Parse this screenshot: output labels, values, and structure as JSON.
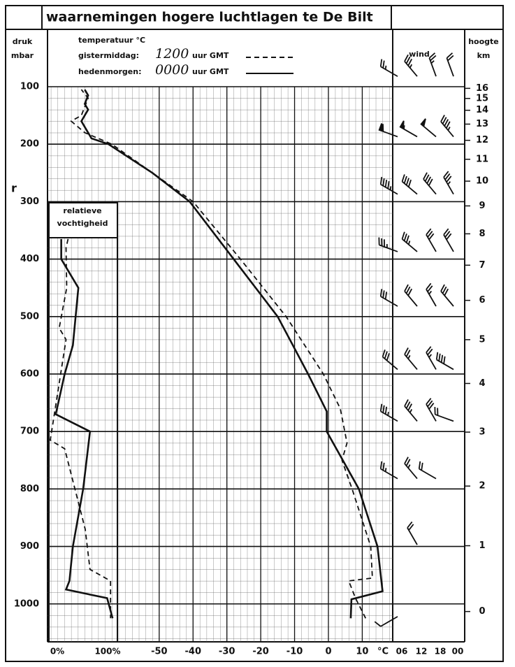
{
  "chart_data": {
    "type": "sounding",
    "title": "waarnemingen hogere luchtlagen te De Bilt",
    "annotation": "r",
    "ylabel": "druk",
    "yunit": "mbar",
    "xlabel": "temperatuur °C",
    "xunit": "°C",
    "wind_label": "wind",
    "height_label": "hoogte",
    "height_unit": "km",
    "ylim": [
      100,
      1066
    ],
    "yticks": [
      100,
      200,
      300,
      400,
      500,
      600,
      700,
      800,
      900,
      1000
    ],
    "xlim": [
      -83,
      19
    ],
    "xticks": [
      -50,
      -40,
      -30,
      -20,
      -10,
      0,
      10
    ],
    "height_ticks": [
      0,
      1,
      2,
      3,
      4,
      5,
      6,
      7,
      8,
      9,
      10,
      11,
      12,
      13,
      14,
      15,
      16
    ],
    "grid": true,
    "humidity": {
      "label": [
        "relatieve",
        "vochtigheid"
      ],
      "xlim": [
        0,
        100
      ],
      "xticks": [
        {
          "value": 0,
          "label": "0%"
        },
        {
          "value": 100,
          "label": "100%"
        }
      ]
    },
    "series": [
      {
        "name": "gistermiddag:",
        "time": "1200",
        "time_unit": "uur GMT",
        "color": "#111",
        "dash": true,
        "pressure": [
          1025,
          990,
          960,
          955,
          900,
          800,
          750,
          720,
          660,
          600,
          500,
          400,
          300,
          250,
          200,
          180,
          160,
          150,
          120,
          105
        ],
        "temperature": [
          11,
          8,
          6,
          13,
          12.5,
          7,
          4,
          5.5,
          3.5,
          -1.5,
          -12.5,
          -26,
          -40,
          -52,
          -64,
          -72,
          -76,
          -73,
          -71,
          -73
        ],
        "humidity_pressure": [
          365,
          380,
          450,
          520,
          540,
          715,
          730,
          870,
          940,
          960,
          1025
        ],
        "humidity": [
          28,
          25,
          26,
          15,
          25,
          2,
          23,
          53,
          60,
          90,
          90
        ]
      },
      {
        "name": "hedenmorgen:",
        "time": "0000",
        "time_unit": "uur GMT",
        "color": "#111",
        "dash": false,
        "pressure": [
          1025,
          992,
          978,
          900,
          800,
          700,
          665,
          600,
          500,
          400,
          300,
          250,
          200,
          190,
          170,
          160,
          150,
          140,
          130,
          115,
          105
        ],
        "temperature": [
          6.6,
          6.8,
          16,
          14.5,
          9,
          -0.5,
          -0.5,
          -6,
          -15,
          -28,
          -41,
          -52,
          -65,
          -70,
          -72,
          -73,
          -72,
          -71,
          -72,
          -71,
          -72
        ],
        "humidity_pressure": [
          365,
          400,
          450,
          550,
          600,
          670,
          700,
          800,
          900,
          960,
          975,
          990,
          1025
        ],
        "humidity": [
          18,
          18,
          43,
          35,
          23,
          10,
          60,
          50,
          35,
          30,
          25,
          85,
          93
        ]
      }
    ],
    "wind": {
      "times": [
        "06",
        "12",
        "18",
        "00"
      ],
      "levels": [
        65,
        170,
        270,
        370,
        465,
        575,
        665,
        765,
        880,
        1005
      ],
      "direction": [
        [
          300,
          320,
          340,
          340
        ],
        [
          290,
          300,
          310,
          320
        ],
        [
          300,
          310,
          320,
          330
        ],
        [
          290,
          310,
          330,
          330
        ],
        [
          300,
          320,
          330,
          320
        ],
        [
          310,
          320,
          330,
          300
        ],
        [
          300,
          320,
          330,
          290
        ],
        [
          300,
          320,
          300,
          null
        ],
        [
          null,
          330,
          null,
          null
        ],
        [
          240,
          null,
          null,
          null
        ]
      ],
      "speed": [
        [
          25,
          35,
          25,
          20
        ],
        [
          60,
          55,
          50,
          45
        ],
        [
          45,
          40,
          40,
          35
        ],
        [
          35,
          35,
          30,
          30
        ],
        [
          30,
          30,
          25,
          30
        ],
        [
          30,
          25,
          25,
          40
        ],
        [
          35,
          35,
          30,
          20
        ],
        [
          25,
          25,
          20,
          null
        ],
        [
          null,
          20,
          null,
          null
        ],
        [
          10,
          null,
          null,
          null
        ]
      ]
    }
  }
}
